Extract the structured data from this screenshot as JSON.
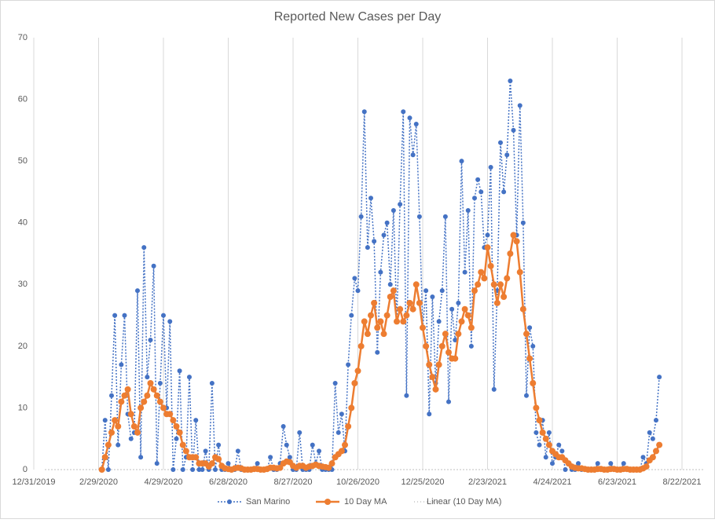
{
  "chart_data": {
    "type": "line",
    "title": "Reported New Cases per Day",
    "x": [
      43893,
      43896,
      43899,
      43902,
      43905,
      43908,
      43911,
      43914,
      43917,
      43920,
      43923,
      43926,
      43929,
      43932,
      43935,
      43938,
      43941,
      43944,
      43947,
      43950,
      43953,
      43956,
      43959,
      43962,
      43965,
      43968,
      43971,
      43974,
      43977,
      43980,
      43983,
      43986,
      43989,
      43992,
      43995,
      43998,
      44001,
      44004,
      44007,
      44010,
      44013,
      44016,
      44019,
      44022,
      44025,
      44028,
      44031,
      44034,
      44037,
      44040,
      44043,
      44046,
      44049,
      44052,
      44055,
      44058,
      44061,
      44064,
      44067,
      44070,
      44073,
      44076,
      44079,
      44082,
      44085,
      44088,
      44091,
      44094,
      44097,
      44100,
      44103,
      44106,
      44109,
      44112,
      44115,
      44118,
      44121,
      44124,
      44127,
      44130,
      44133,
      44136,
      44139,
      44142,
      44145,
      44148,
      44151,
      44154,
      44157,
      44160,
      44163,
      44166,
      44169,
      44172,
      44175,
      44178,
      44181,
      44184,
      44187,
      44190,
      44193,
      44196,
      44199,
      44202,
      44205,
      44208,
      44211,
      44214,
      44217,
      44220,
      44223,
      44226,
      44229,
      44232,
      44235,
      44238,
      44241,
      44244,
      44247,
      44250,
      44253,
      44256,
      44259,
      44262,
      44265,
      44268,
      44271,
      44274,
      44277,
      44280,
      44283,
      44286,
      44289,
      44292,
      44295,
      44298,
      44301,
      44304,
      44307,
      44310,
      44313,
      44316,
      44319,
      44322,
      44325,
      44328,
      44331,
      44334,
      44337,
      44340,
      44343,
      44346,
      44349,
      44352,
      44355,
      44358,
      44361,
      44364,
      44367,
      44370,
      44373,
      44376,
      44379,
      44382,
      44385,
      44388,
      44391,
      44394,
      44397,
      44400,
      44403,
      44406,
      44409
    ],
    "series": [
      {
        "name": "San Marino",
        "color": "#4472c4",
        "line_style": "dotted",
        "values": [
          0,
          8,
          0,
          12,
          25,
          4,
          17,
          25,
          9,
          5,
          6,
          29,
          2,
          36,
          15,
          21,
          33,
          1,
          14,
          25,
          10,
          24,
          0,
          5,
          16,
          0,
          2,
          15,
          0,
          8,
          0,
          0,
          3,
          0,
          14,
          0,
          4,
          0,
          0,
          1,
          0,
          0,
          3,
          0,
          0,
          0,
          0,
          0,
          1,
          0,
          0,
          0,
          2,
          0,
          0,
          1,
          7,
          4,
          2,
          0,
          0,
          6,
          0,
          0,
          0,
          4,
          1,
          3,
          0,
          0,
          0,
          0,
          14,
          6,
          9,
          3,
          17,
          25,
          31,
          29,
          41,
          58,
          36,
          44,
          37,
          19,
          32,
          38,
          40,
          30,
          42,
          24,
          43,
          58,
          12,
          57,
          51,
          56,
          41,
          23,
          29,
          9,
          28,
          14,
          24,
          29,
          41,
          11,
          26,
          21,
          27,
          50,
          32,
          42,
          20,
          44,
          47,
          45,
          36,
          38,
          49,
          13,
          29,
          53,
          45,
          51,
          63,
          55,
          38,
          59,
          40,
          12,
          23,
          20,
          6,
          4,
          8,
          2,
          6,
          1,
          2,
          4,
          3,
          0,
          1,
          0,
          0,
          1,
          0,
          0,
          0,
          0,
          0,
          1,
          0,
          0,
          0,
          1,
          0,
          0,
          0,
          1,
          0,
          0,
          0,
          0,
          0,
          2,
          1,
          6,
          5,
          8,
          15
        ]
      },
      {
        "name": "10 Day MA",
        "color": "#ed7d31",
        "line_style": "solid",
        "values": [
          0,
          2,
          4,
          6,
          8,
          7,
          11,
          12,
          13,
          9,
          7,
          6,
          10,
          11,
          12,
          14,
          13,
          12,
          11,
          10,
          9,
          9,
          8,
          7,
          6,
          4,
          3,
          2,
          2,
          2,
          1,
          1,
          1,
          0.5,
          1,
          2,
          1.7,
          0.6,
          0.2,
          0.1,
          0,
          0.2,
          0.3,
          0.2,
          0,
          0,
          0,
          0.1,
          0.1,
          0,
          0,
          0.1,
          0.3,
          0.3,
          0.2,
          0.3,
          1,
          1.3,
          1.2,
          0.6,
          0.3,
          0.6,
          0.6,
          0.3,
          0.5,
          0.6,
          0.8,
          0.6,
          0.5,
          0.4,
          0.3,
          1,
          2,
          2.5,
          3,
          4,
          7,
          10,
          14,
          16,
          20,
          24,
          22,
          25,
          27,
          23,
          24,
          22,
          25,
          28,
          29,
          24,
          26,
          24,
          25,
          27,
          26,
          30,
          27,
          23,
          20,
          17,
          15,
          13,
          17,
          20,
          22,
          19,
          18,
          18,
          22,
          24,
          26,
          25,
          23,
          29,
          30,
          32,
          31,
          36,
          33,
          30,
          27,
          30,
          28,
          31,
          35,
          38,
          37,
          32,
          26,
          22,
          18,
          14,
          10,
          8,
          6,
          5,
          4,
          3,
          2.5,
          2,
          2,
          1.5,
          1,
          0.5,
          0.3,
          0.2,
          0.2,
          0.1,
          0,
          0,
          0,
          0.1,
          0.1,
          0,
          0,
          0.1,
          0.1,
          0,
          0,
          0.1,
          0.1,
          0,
          0,
          0,
          0,
          0.2,
          0.5,
          1.5,
          2,
          3,
          4
        ]
      }
    ],
    "trendline": {
      "name": "Linear (10 Day MA)",
      "color": "#a5a5a5"
    },
    "xlim": [
      43830,
      44430
    ],
    "xticks": [
      {
        "value": 43830,
        "label": "12/31/2019"
      },
      {
        "value": 43890,
        "label": "2/29/2020"
      },
      {
        "value": 43950,
        "label": "4/29/2020"
      },
      {
        "value": 44010,
        "label": "6/28/2020"
      },
      {
        "value": 44070,
        "label": "8/27/2020"
      },
      {
        "value": 44130,
        "label": "10/26/2020"
      },
      {
        "value": 44190,
        "label": "12/25/2020"
      },
      {
        "value": 44250,
        "label": "2/23/2021"
      },
      {
        "value": 44310,
        "label": "4/24/2021"
      },
      {
        "value": 44370,
        "label": "6/23/2021"
      },
      {
        "value": 44430,
        "label": "8/22/2021"
      }
    ],
    "ylim": [
      0,
      70
    ],
    "yticks": [
      0,
      10,
      20,
      30,
      40,
      50,
      60,
      70
    ],
    "grid": "x"
  }
}
